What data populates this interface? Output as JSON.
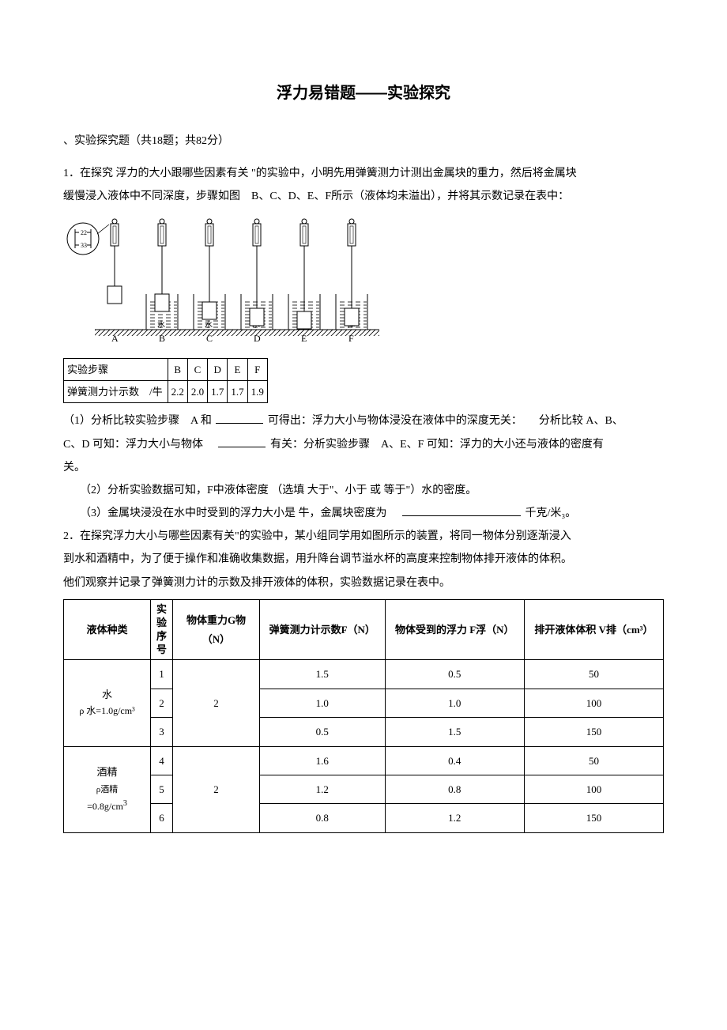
{
  "title": "浮力易错题——实验探究",
  "section_head": "、实验探究题（共18题；共82分）",
  "q1": {
    "lead1": "1．在探究 浮力的大小跟哪些因素有关 \"的实验中，小明先用弹簧测力计测出金属块的重力，然后将金属块",
    "lead2": "缓慢浸入液体中不同深度，步骤如图　B、C、D、E、F所示（液体均未溢出），并将其示数记录在表中：",
    "step_row_label": "实验步骤",
    "steps": [
      "B",
      "C",
      "D",
      "E",
      "F"
    ],
    "reading_row_label": "弹簧测力计示数　/牛",
    "readings": [
      "2.2",
      "2.0",
      "1.7",
      "1.7",
      "1.9"
    ],
    "p1a": "（1）分析比较实验步骤　A 和",
    "p1b": "可得出：浮力大小与物体浸没在液体中的深度无关：　　分析比较 A、B、",
    "p1c": "C、D 可知：浮力大小与物体　",
    "p1d": "有关：分析实验步骤　A、E、F 可知：浮力的大小还与液体的密度有",
    "p1e": "关。",
    "p2": "（2）分析实验数据可知，F中液体密度 （选填 大于\"、小于 或 等于\"）水的密度。",
    "p3a": "（3）金属块浸没在水中时受到的浮力大小是 牛，金属块密度为　",
    "p3b": "千克/米₃。"
  },
  "q2": {
    "lead1": "2．在探究浮力大小与哪些因素有关\"的实验中，某小组同学用如图所示的装置，将同一物体分别逐渐浸入",
    "lead2": "到水和酒精中，为了便于操作和准确收集数据，用升降台调节溢水杯的高度来控制物体排开液体的体积。",
    "lead3": "他们观察并记录了弹簧测力计的示数及排开液体的体积，实验数据记录在表中。",
    "headers": [
      "液体种类",
      "实验序号",
      "物体重力G物（N）",
      "弹簧测力计示数F（N）",
      "物体受到的浮力 F浮（N）",
      "排开液体体积 V排（cm³）"
    ],
    "water_label": "水",
    "water_density": "ρ 水=1.0g/cm³",
    "alcohol_label": "酒精",
    "alcohol_sub": "ρ酒精",
    "alcohol_density": "=0.8g/cm",
    "alcohol_density_sup": "3",
    "rows": [
      {
        "n": "1",
        "g": "2",
        "f": "1.5",
        "fb": "0.5",
        "v": "50"
      },
      {
        "n": "2",
        "g": "",
        "f": "1.0",
        "fb": "1.0",
        "v": "100"
      },
      {
        "n": "3",
        "g": "",
        "f": "0.5",
        "fb": "1.5",
        "v": "150"
      },
      {
        "n": "4",
        "g": "2",
        "f": "1.6",
        "fb": "0.4",
        "v": "50"
      },
      {
        "n": "5",
        "g": "",
        "f": "1.2",
        "fb": "0.8",
        "v": "100"
      },
      {
        "n": "6",
        "g": "",
        "f": "0.8",
        "fb": "1.2",
        "v": "150"
      }
    ]
  },
  "fig": {
    "labels": [
      "A",
      "B",
      "C",
      "D",
      "E",
      "F"
    ],
    "liquid_label": "液体",
    "water_char": "水"
  },
  "colors": {
    "text": "#000000",
    "bg": "#ffffff",
    "border": "#000000",
    "hatch": "#000000"
  }
}
